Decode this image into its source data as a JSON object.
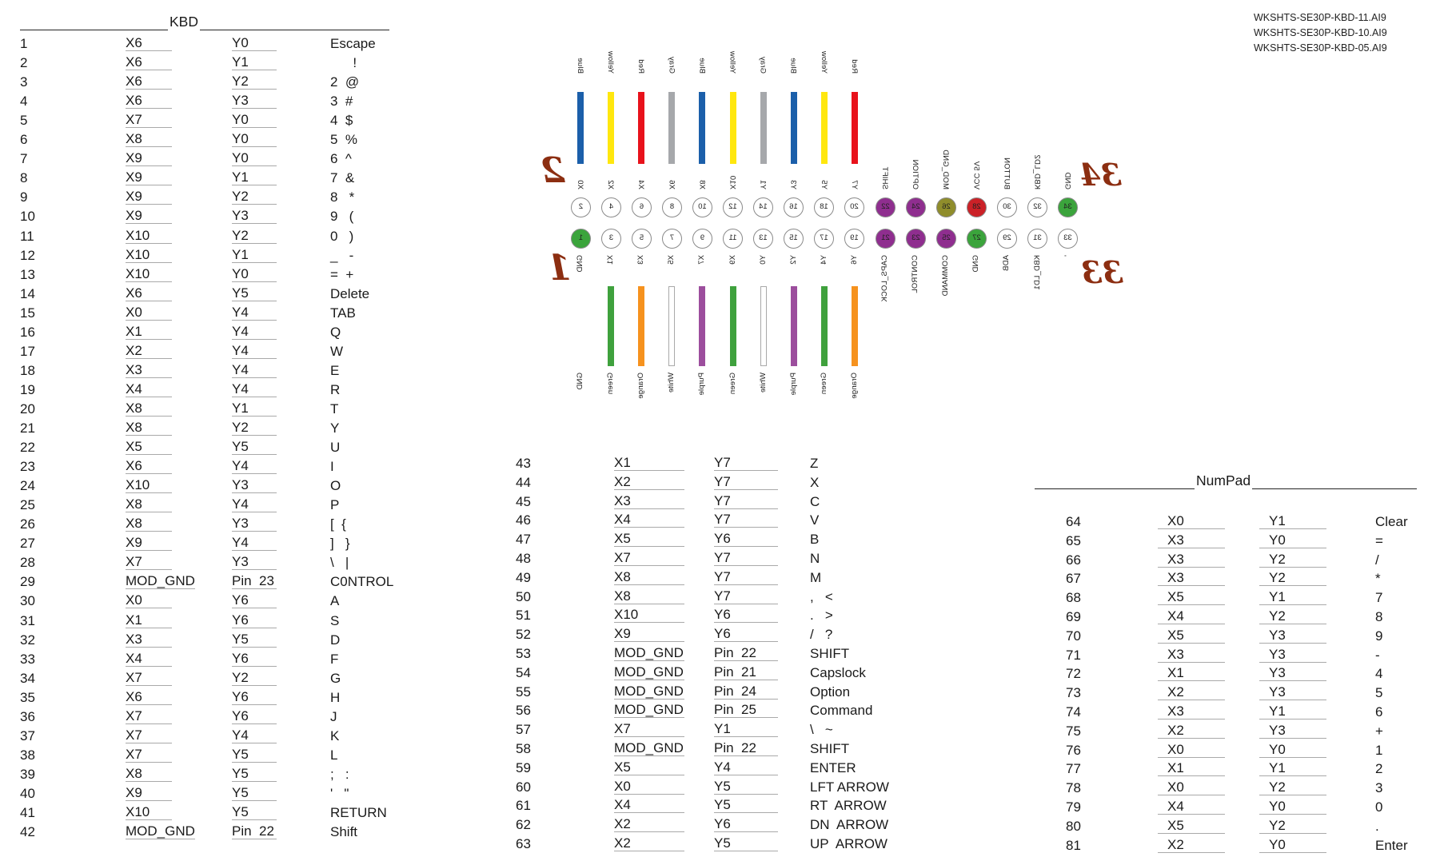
{
  "page": {
    "notes": [
      "WKSHTS-SE30P-KBD-11.AI9",
      "WKSHTS-SE30P-KBD-10.AI9",
      "WKSHTS-SE30P-KBD-05.AI9"
    ]
  },
  "kbd_table": {
    "title": "KBD",
    "rows": [
      {
        "n": "1",
        "x": "X6",
        "y": "Y0",
        "legend": "Escape"
      },
      {
        "n": "2",
        "x": "X6",
        "y": "Y1",
        "legend": "      !"
      },
      {
        "n": "3",
        "x": "X6",
        "y": "Y2",
        "legend": "2  @"
      },
      {
        "n": "4",
        "x": "X6",
        "y": "Y3",
        "legend": "3  #"
      },
      {
        "n": "5",
        "x": "X7",
        "y": "Y0",
        "legend": "4  $"
      },
      {
        "n": "6",
        "x": "X8",
        "y": "Y0",
        "legend": "5  %"
      },
      {
        "n": "7",
        "x": "X9",
        "y": "Y0",
        "legend": "6  ^"
      },
      {
        "n": "8",
        "x": "X9",
        "y": "Y1",
        "legend": "7  &"
      },
      {
        "n": "9",
        "x": "X9",
        "y": "Y2",
        "legend": "8   *"
      },
      {
        "n": "10",
        "x": "X9",
        "y": "Y3",
        "legend": "9   ("
      },
      {
        "n": "11",
        "x": "X10",
        "y": "Y2",
        "legend": "0   )"
      },
      {
        "n": "12",
        "x": "X10",
        "y": "Y1",
        "legend": "_   -"
      },
      {
        "n": "13",
        "x": "X10",
        "y": "Y0",
        "legend": "=  +"
      },
      {
        "n": "14",
        "x": "X6",
        "y": "Y5",
        "legend": "Delete"
      },
      {
        "n": "15",
        "x": "X0",
        "y": "Y4",
        "legend": "TAB"
      },
      {
        "n": "16",
        "x": "X1",
        "y": "Y4",
        "legend": "Q"
      },
      {
        "n": "17",
        "x": "X2",
        "y": "Y4",
        "legend": "W"
      },
      {
        "n": "18",
        "x": "X3",
        "y": "Y4",
        "legend": "E"
      },
      {
        "n": "19",
        "x": "X4",
        "y": "Y4",
        "legend": "R"
      },
      {
        "n": "20",
        "x": "X8",
        "y": "Y1",
        "legend": "T"
      },
      {
        "n": "21",
        "x": "X8",
        "y": "Y2",
        "legend": "Y"
      },
      {
        "n": "22",
        "x": "X5",
        "y": "Y5",
        "legend": "U"
      },
      {
        "n": "23",
        "x": "X6",
        "y": "Y4",
        "legend": "I"
      },
      {
        "n": "24",
        "x": "X10",
        "y": "Y3",
        "legend": "O"
      },
      {
        "n": "25",
        "x": "X8",
        "y": "Y4",
        "legend": "P"
      },
      {
        "n": "26",
        "x": "X8",
        "y": "Y3",
        "legend": "[  {"
      },
      {
        "n": "27",
        "x": "X9",
        "y": "Y4",
        "legend": "]   }"
      },
      {
        "n": "28",
        "x": "X7",
        "y": "Y3",
        "legend": "\\   |"
      },
      {
        "n": "29",
        "x": "MOD_GND",
        "y": "Pin  23",
        "legend": "C0NTROL"
      },
      {
        "n": "30",
        "x": "X0",
        "y": "Y6",
        "legend": "A"
      },
      {
        "n": "31",
        "x": "X1",
        "y": "Y6",
        "legend": "S"
      },
      {
        "n": "32",
        "x": "X3",
        "y": "Y5",
        "legend": "D"
      },
      {
        "n": "33",
        "x": "X4",
        "y": "Y6",
        "legend": "F"
      },
      {
        "n": "34",
        "x": "X7",
        "y": "Y2",
        "legend": "G"
      },
      {
        "n": "35",
        "x": "X6",
        "y": "Y6",
        "legend": "H"
      },
      {
        "n": "36",
        "x": "X7",
        "y": "Y6",
        "legend": "J"
      },
      {
        "n": "37",
        "x": "X7",
        "y": "Y4",
        "legend": "K"
      },
      {
        "n": "38",
        "x": "X7",
        "y": "Y5",
        "legend": "L"
      },
      {
        "n": "39",
        "x": "X8",
        "y": "Y5",
        "legend": ";   :"
      },
      {
        "n": "40",
        "x": "X9",
        "y": "Y5",
        "legend": "'   \""
      },
      {
        "n": "41",
        "x": "X10",
        "y": "Y5",
        "legend": "RETURN"
      },
      {
        "n": "42",
        "x": "MOD_GND",
        "y": "Pin  22",
        "legend": "Shift"
      }
    ]
  },
  "mid_table": {
    "rows": [
      {
        "n": "43",
        "x": "X1",
        "y": "Y7",
        "legend": "Z"
      },
      {
        "n": "44",
        "x": "X2",
        "y": "Y7",
        "legend": "X"
      },
      {
        "n": "45",
        "x": "X3",
        "y": "Y7",
        "legend": "C"
      },
      {
        "n": "46",
        "x": "X4",
        "y": "Y7",
        "legend": "V"
      },
      {
        "n": "47",
        "x": "X5",
        "y": "Y6",
        "legend": "B"
      },
      {
        "n": "48",
        "x": "X7",
        "y": "Y7",
        "legend": "N"
      },
      {
        "n": "49",
        "x": "X8",
        "y": "Y7",
        "legend": "M"
      },
      {
        "n": "50",
        "x": "X8",
        "y": "Y7",
        "legend": ",   <"
      },
      {
        "n": "51",
        "x": "X10",
        "y": "Y6",
        "legend": ".   >"
      },
      {
        "n": "52",
        "x": "X9",
        "y": "Y6",
        "legend": "/   ?"
      },
      {
        "n": "53",
        "x": "MOD_GND",
        "y": "Pin  22",
        "legend": "SHIFT"
      },
      {
        "n": "54",
        "x": "MOD_GND",
        "y": "Pin  21",
        "legend": "Capslock"
      },
      {
        "n": "55",
        "x": "MOD_GND",
        "y": "Pin  24",
        "legend": "Option"
      },
      {
        "n": "56",
        "x": "MOD_GND",
        "y": "Pin  25",
        "legend": "Command"
      },
      {
        "n": "57",
        "x": "X7",
        "y": "Y1",
        "legend": "\\   ~"
      },
      {
        "n": "58",
        "x": "MOD_GND",
        "y": "Pin  22",
        "legend": "SHIFT"
      },
      {
        "n": "59",
        "x": "X5",
        "y": "Y4",
        "legend": "ENTER"
      },
      {
        "n": "60",
        "x": "X0",
        "y": "Y5",
        "legend": "LFT ARROW"
      },
      {
        "n": "61",
        "x": "X4",
        "y": "Y5",
        "legend": "RT  ARROW"
      },
      {
        "n": "62",
        "x": "X2",
        "y": "Y6",
        "legend": "DN  ARROW"
      },
      {
        "n": "63",
        "x": "X2",
        "y": "Y5",
        "legend": "UP  ARROW"
      }
    ]
  },
  "numpad_table": {
    "title": "NumPad",
    "rows": [
      {
        "n": "64",
        "x": "X0",
        "y": "Y1",
        "legend": "Clear"
      },
      {
        "n": "65",
        "x": "X3",
        "y": "Y0",
        "legend": "="
      },
      {
        "n": "66",
        "x": "X3",
        "y": "Y2",
        "legend": "/"
      },
      {
        "n": "67",
        "x": "X3",
        "y": "Y2",
        "legend": "*"
      },
      {
        "n": "68",
        "x": "X5",
        "y": "Y1",
        "legend": "7"
      },
      {
        "n": "69",
        "x": "X4",
        "y": "Y2",
        "legend": "8"
      },
      {
        "n": "70",
        "x": "X5",
        "y": "Y3",
        "legend": "9"
      },
      {
        "n": "71",
        "x": "X3",
        "y": "Y3",
        "legend": "-"
      },
      {
        "n": "72",
        "x": "X1",
        "y": "Y3",
        "legend": "4"
      },
      {
        "n": "73",
        "x": "X2",
        "y": "Y3",
        "legend": "5"
      },
      {
        "n": "74",
        "x": "X3",
        "y": "Y1",
        "legend": "6"
      },
      {
        "n": "75",
        "x": "X2",
        "y": "Y3",
        "legend": "+"
      },
      {
        "n": "76",
        "x": "X0",
        "y": "Y0",
        "legend": "1"
      },
      {
        "n": "77",
        "x": "X1",
        "y": "Y1",
        "legend": "2"
      },
      {
        "n": "78",
        "x": "X0",
        "y": "Y2",
        "legend": "3"
      },
      {
        "n": "79",
        "x": "X4",
        "y": "Y0",
        "legend": "0"
      },
      {
        "n": "80",
        "x": "X5",
        "y": "Y2",
        "legend": "."
      },
      {
        "n": "81",
        "x": "X2",
        "y": "Y0",
        "legend": "Enter"
      }
    ]
  },
  "connector": {
    "big_numbers": {
      "top_left": "2",
      "bottom_left": "1",
      "top_right": "34",
      "bottom_right": "33"
    },
    "big_number_color": "#8C2E11",
    "top_wires": [
      {
        "color": "Blue",
        "hex": "#1B5FAA",
        "signal": "X0"
      },
      {
        "color": "Yellow",
        "hex": "#FFE70E",
        "signal": "X2"
      },
      {
        "color": "Red",
        "hex": "#E8121B",
        "signal": "X4"
      },
      {
        "color": "Gray",
        "hex": "#A6A8AB",
        "signal": "X6"
      },
      {
        "color": "Blue",
        "hex": "#1B5FAA",
        "signal": "X8"
      },
      {
        "color": "Yellow",
        "hex": "#FFE70E",
        "signal": "X10"
      },
      {
        "color": "Gray",
        "hex": "#A6A8AB",
        "signal": "Y1"
      },
      {
        "color": "Blue",
        "hex": "#1B5FAA",
        "signal": "Y3"
      },
      {
        "color": "Yellow",
        "hex": "#FFE70E",
        "signal": "Y5"
      },
      {
        "color": "Red",
        "hex": "#E8121B",
        "signal": "Y7"
      }
    ],
    "top_functions": [
      "SHIFT",
      "OPTION",
      "MOD_GND",
      "VCC 5V",
      "BUTTON",
      "KBD_LD2",
      "GND"
    ],
    "top_pins": [
      {
        "n": "2",
        "fill": "#ffffff"
      },
      {
        "n": "4",
        "fill": "#ffffff"
      },
      {
        "n": "6",
        "fill": "#ffffff"
      },
      {
        "n": "8",
        "fill": "#ffffff"
      },
      {
        "n": "10",
        "fill": "#ffffff"
      },
      {
        "n": "12",
        "fill": "#ffffff"
      },
      {
        "n": "14",
        "fill": "#ffffff"
      },
      {
        "n": "16",
        "fill": "#ffffff"
      },
      {
        "n": "18",
        "fill": "#ffffff"
      },
      {
        "n": "20",
        "fill": "#ffffff"
      },
      {
        "n": "22",
        "fill": "#8F2E8F"
      },
      {
        "n": "24",
        "fill": "#8F2E8F"
      },
      {
        "n": "26",
        "fill": "#8F8D2B"
      },
      {
        "n": "28",
        "fill": "#CB2127"
      },
      {
        "n": "30",
        "fill": "#ffffff"
      },
      {
        "n": "32",
        "fill": "#ffffff"
      },
      {
        "n": "34",
        "fill": "#3BA43C"
      }
    ],
    "bottom_pins": [
      {
        "n": "1",
        "fill": "#3BA43C"
      },
      {
        "n": "3",
        "fill": "#ffffff"
      },
      {
        "n": "5",
        "fill": "#ffffff"
      },
      {
        "n": "7",
        "fill": "#ffffff"
      },
      {
        "n": "9",
        "fill": "#ffffff"
      },
      {
        "n": "11",
        "fill": "#ffffff"
      },
      {
        "n": "13",
        "fill": "#ffffff"
      },
      {
        "n": "15",
        "fill": "#ffffff"
      },
      {
        "n": "17",
        "fill": "#ffffff"
      },
      {
        "n": "19",
        "fill": "#ffffff"
      },
      {
        "n": "21",
        "fill": "#8F2E8F"
      },
      {
        "n": "23",
        "fill": "#8F2E8F"
      },
      {
        "n": "25",
        "fill": "#8F2E8F"
      },
      {
        "n": "27",
        "fill": "#3BA43C"
      },
      {
        "n": "29",
        "fill": "#ffffff"
      },
      {
        "n": "31",
        "fill": "#ffffff"
      },
      {
        "n": "33",
        "fill": "#ffffff"
      }
    ],
    "bottom_labels": [
      "GND",
      "X1",
      "X3",
      "X5",
      "X7",
      "X9",
      "Y0",
      "Y2",
      "Y4",
      "Y6",
      "CAPS_LOCK",
      "CONTROL",
      "COMMAND",
      "GND",
      "ADB",
      "KBD_LD1",
      "'"
    ],
    "bottom_wires": [
      {
        "color": "Green",
        "hex": "#3FA13D"
      },
      {
        "color": "Orange",
        "hex": "#F6921E"
      },
      {
        "color": "White",
        "hex": "#FFFFFF"
      },
      {
        "color": "Purple",
        "hex": "#9C4E9D"
      },
      {
        "color": "Green",
        "hex": "#3FA13D"
      },
      {
        "color": "White",
        "hex": "#FFFFFF"
      },
      {
        "color": "Purple",
        "hex": "#9C4E9D"
      },
      {
        "color": "Green",
        "hex": "#3FA13D"
      },
      {
        "color": "Orange",
        "hex": "#F6921E"
      }
    ],
    "bottom_color_labels": [
      "GND",
      "Green",
      "Orange",
      "White",
      "Purple",
      "Green",
      "White",
      "Purple",
      "Green",
      "Orange"
    ]
  }
}
